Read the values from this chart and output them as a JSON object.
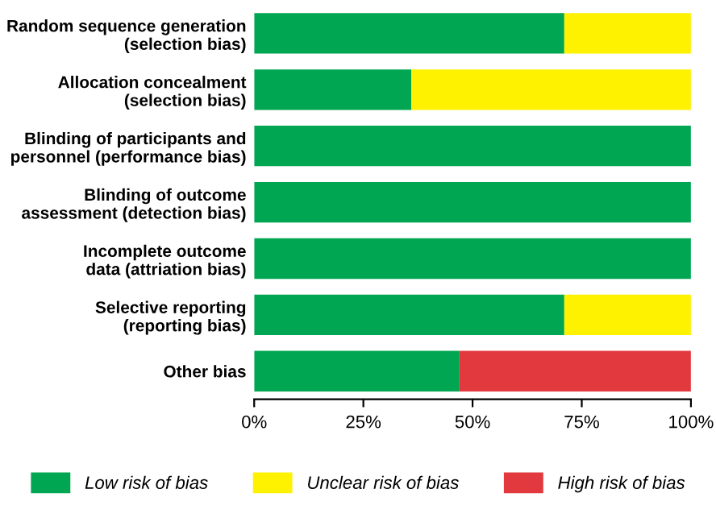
{
  "chart_data": {
    "type": "bar",
    "orientation": "horizontal",
    "stacked": true,
    "categories": [
      "Random sequence generation\n(selection bias)",
      "Allocation concealment\n(selection bias)",
      "Blinding of participants and\npersonnel (performance bias)",
      "Blinding of outcome\nassessment (detection bias)",
      "Incomplete outcome\ndata (attriation bias)",
      "Selective reporting\n(reporting bias)",
      "Other bias"
    ],
    "series": [
      {
        "name": "Low risk of bias",
        "color": "#00a651",
        "values": [
          71,
          36,
          100,
          100,
          100,
          71,
          47
        ]
      },
      {
        "name": "Unclear risk of bias",
        "color": "#fff200",
        "values": [
          29,
          64,
          0,
          0,
          0,
          29,
          0
        ]
      },
      {
        "name": "High risk of bias",
        "color": "#e2393e",
        "values": [
          0,
          0,
          0,
          0,
          0,
          0,
          53
        ]
      }
    ],
    "xlim": [
      0,
      100
    ],
    "xticks": [
      {
        "value": 0,
        "label": "0%"
      },
      {
        "value": 25,
        "label": "25%"
      },
      {
        "value": 50,
        "label": "50%"
      },
      {
        "value": 75,
        "label": "75%"
      },
      {
        "value": 100,
        "label": "100%"
      }
    ],
    "legend": "bottom",
    "grid": false
  }
}
